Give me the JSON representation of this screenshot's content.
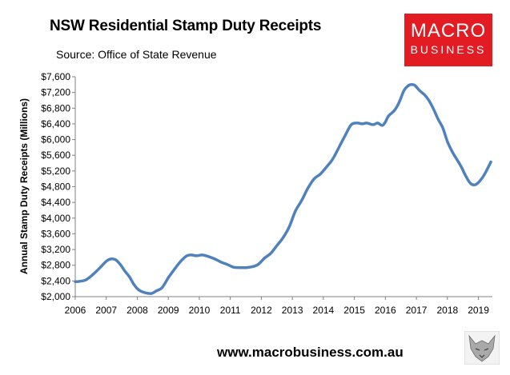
{
  "header": {
    "title": "NSW Residential Stamp Duty Receipts",
    "source": "Source: Office of State Revenue"
  },
  "logo": {
    "line1": "MACRO",
    "line2": "BUSINESS"
  },
  "footer": {
    "url": "www.macrobusiness.com.au"
  },
  "colors": {
    "series": "#4f81bd",
    "logo_bg": "#e31b23"
  },
  "chart_data": {
    "type": "line",
    "title": "",
    "xlabel": "",
    "ylabel": "Annual Stamp Duty Receipts (Millions)",
    "xlim": [
      2006,
      2019.45
    ],
    "ylim": [
      2000,
      7600
    ],
    "xticks": [
      "2006",
      "2007",
      "2008",
      "2009",
      "2010",
      "2011",
      "2012",
      "2013",
      "2014",
      "2015",
      "2016",
      "2017",
      "2018",
      "2019"
    ],
    "yticks": [
      "$2,000",
      "$2,400",
      "$2,800",
      "$3,200",
      "$3,600",
      "$4,000",
      "$4,400",
      "$4,800",
      "$5,200",
      "$5,600",
      "$6,000",
      "$6,400",
      "$6,800",
      "$7,200",
      "$7,600"
    ],
    "grid": false,
    "series": [
      {
        "x": [
          2006.0,
          2006.15,
          2006.35,
          2006.55,
          2006.75,
          2007.0,
          2007.15,
          2007.3,
          2007.45,
          2007.6,
          2007.75,
          2007.9,
          2008.05,
          2008.25,
          2008.45,
          2008.6,
          2008.8,
          2009.0,
          2009.2,
          2009.4,
          2009.6,
          2009.75,
          2009.9,
          2010.1,
          2010.3,
          2010.5,
          2010.7,
          2010.9,
          2011.1,
          2011.3,
          2011.5,
          2011.7,
          2011.9,
          2012.1,
          2012.3,
          2012.5,
          2012.7,
          2012.9,
          2013.1,
          2013.3,
          2013.5,
          2013.7,
          2013.9,
          2014.1,
          2014.3,
          2014.5,
          2014.7,
          2014.9,
          2015.1,
          2015.25,
          2015.4,
          2015.6,
          2015.75,
          2015.9,
          2016.0,
          2016.1,
          2016.3,
          2016.45,
          2016.6,
          2016.75,
          2016.85,
          2016.95,
          2017.1,
          2017.25,
          2017.4,
          2017.55,
          2017.7,
          2017.85,
          2018.0,
          2018.15,
          2018.3,
          2018.45,
          2018.6,
          2018.75,
          2018.9,
          2019.05,
          2019.2,
          2019.4
        ],
        "y": [
          2380,
          2390,
          2430,
          2550,
          2700,
          2900,
          2960,
          2940,
          2820,
          2650,
          2500,
          2300,
          2170,
          2100,
          2080,
          2140,
          2230,
          2480,
          2700,
          2900,
          3040,
          3060,
          3040,
          3060,
          3020,
          2960,
          2880,
          2820,
          2750,
          2740,
          2740,
          2760,
          2820,
          2980,
          3100,
          3300,
          3500,
          3780,
          4180,
          4450,
          4760,
          5000,
          5120,
          5300,
          5500,
          5800,
          6100,
          6380,
          6420,
          6400,
          6420,
          6380,
          6420,
          6360,
          6450,
          6600,
          6750,
          6960,
          7250,
          7380,
          7400,
          7380,
          7250,
          7150,
          7000,
          6780,
          6520,
          6300,
          5950,
          5700,
          5500,
          5300,
          5060,
          4880,
          4850,
          4950,
          5120,
          5430
        ]
      }
    ]
  }
}
